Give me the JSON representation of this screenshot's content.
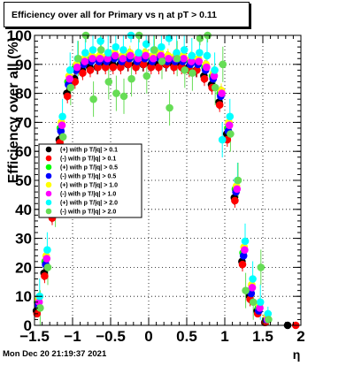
{
  "title": "Efficiency over all for Primary vs  η at pT > 0.11",
  "footer": "Mon Dec 20 21:19:37 2021",
  "chart_data": {
    "type": "scatter",
    "xlabel": "η",
    "ylabel": "Efficiency over all (%)",
    "xlim": [
      -1.5,
      2.0
    ],
    "ylim": [
      0,
      100
    ],
    "x_ticks": [
      "−1.5",
      "−1",
      "−0.5",
      "0",
      "0.5",
      "1",
      "1.5",
      "2"
    ],
    "y_ticks": [
      "0",
      "10",
      "20",
      "30",
      "40",
      "50",
      "60",
      "70",
      "80",
      "90",
      "100"
    ],
    "grid": true,
    "legend_position": "left-middle",
    "series": [
      {
        "name": "(+) with p T/|q| > 0.1",
        "color": "#000000",
        "x": [
          -1.45,
          -1.35,
          -1.25,
          -1.15,
          -1.05,
          -0.95,
          -0.85,
          -0.75,
          -0.65,
          -0.55,
          -0.45,
          -0.35,
          -0.25,
          -0.15,
          -0.05,
          0.05,
          0.15,
          0.25,
          0.35,
          0.45,
          0.55,
          0.65,
          0.75,
          0.85,
          0.95,
          1.05,
          1.15,
          1.25,
          1.35,
          1.45,
          1.55,
          1.85
        ],
        "y": [
          5,
          18,
          38,
          64,
          80,
          85,
          88,
          89,
          89,
          90,
          90,
          90,
          90,
          90,
          90,
          90,
          90,
          90,
          90,
          90,
          89,
          88,
          86,
          83,
          77,
          66,
          44,
          22,
          10,
          5,
          1,
          0
        ]
      },
      {
        "name": "(-) with p T/|q| > 0.1",
        "color": "#ff0000",
        "x": [
          -1.45,
          -1.35,
          -1.25,
          -1.15,
          -1.05,
          -0.95,
          -0.85,
          -0.75,
          -0.65,
          -0.55,
          -0.45,
          -0.35,
          -0.25,
          -0.15,
          -0.05,
          0.05,
          0.15,
          0.25,
          0.35,
          0.45,
          0.55,
          0.65,
          0.75,
          0.85,
          0.95,
          1.05,
          1.15,
          1.25,
          1.35,
          1.45,
          1.55,
          1.95
        ],
        "y": [
          4,
          17,
          37,
          63,
          79,
          84,
          87,
          88,
          89,
          89,
          89,
          89,
          90,
          89,
          90,
          89,
          89,
          90,
          89,
          89,
          88,
          88,
          85,
          82,
          76,
          64,
          43,
          21,
          9,
          4,
          1,
          0
        ]
      },
      {
        "name": "(+) with p T/|q| > 0.5",
        "color": "#00ff00",
        "x": [
          -1.45,
          -1.35,
          -1.25,
          -1.15,
          -1.05,
          -0.95,
          -0.85,
          -0.75,
          -0.65,
          -0.55,
          -0.45,
          -0.35,
          -0.25,
          -0.15,
          -0.05,
          0.05,
          0.15,
          0.25,
          0.35,
          0.45,
          0.55,
          0.65,
          0.75,
          0.85,
          0.95,
          1.05,
          1.15,
          1.25,
          1.35,
          1.45,
          1.55
        ],
        "y": [
          8,
          22,
          42,
          68,
          84,
          89,
          91,
          92,
          92,
          92,
          93,
          92,
          93,
          92,
          93,
          92,
          93,
          92,
          92,
          92,
          91,
          91,
          89,
          86,
          80,
          68,
          47,
          25,
          12,
          6,
          2
        ]
      },
      {
        "name": "(-) with p T/|q| > 0.5",
        "color": "#0000ff",
        "x": [
          -1.45,
          -1.35,
          -1.25,
          -1.15,
          -1.05,
          -0.95,
          -0.85,
          -0.75,
          -0.65,
          -0.55,
          -0.45,
          -0.35,
          -0.25,
          -0.15,
          -0.05,
          0.05,
          0.15,
          0.25,
          0.35,
          0.45,
          0.55,
          0.65,
          0.75,
          0.85,
          0.95,
          1.05,
          1.15,
          1.25,
          1.35,
          1.45,
          1.55
        ],
        "y": [
          7,
          21,
          41,
          67,
          83,
          88,
          90,
          91,
          91,
          91,
          92,
          91,
          92,
          91,
          92,
          91,
          92,
          91,
          91,
          91,
          90,
          90,
          88,
          85,
          79,
          67,
          46,
          24,
          11,
          5,
          2
        ]
      },
      {
        "name": "(+) with p T/|q| > 1.0",
        "color": "#ffff00",
        "x": [
          -1.45,
          -1.35,
          -1.25,
          -1.15,
          -1.05,
          -0.95,
          -0.85,
          -0.75,
          -0.65,
          -0.55,
          -0.45,
          -0.35,
          -0.25,
          -0.15,
          -0.05,
          0.05,
          0.15,
          0.25,
          0.35,
          0.45,
          0.55,
          0.65,
          0.75,
          0.85,
          0.95,
          1.05,
          1.15,
          1.25,
          1.35,
          1.45,
          1.55
        ],
        "y": [
          9,
          24,
          44,
          70,
          86,
          90,
          92,
          93,
          93,
          93,
          94,
          93,
          94,
          93,
          94,
          93,
          94,
          93,
          93,
          93,
          92,
          92,
          90,
          87,
          81,
          70,
          48,
          27,
          14,
          7,
          3
        ]
      },
      {
        "name": "(-) with p T/|q| > 1.0",
        "color": "#ff00ff",
        "x": [
          -1.45,
          -1.35,
          -1.25,
          -1.15,
          -1.05,
          -0.95,
          -0.85,
          -0.75,
          -0.65,
          -0.55,
          -0.45,
          -0.35,
          -0.25,
          -0.15,
          -0.05,
          0.05,
          0.15,
          0.25,
          0.35,
          0.45,
          0.55,
          0.65,
          0.75,
          0.85,
          0.95,
          1.05,
          1.15,
          1.25,
          1.35,
          1.45,
          1.55
        ],
        "y": [
          8,
          23,
          43,
          69,
          85,
          89,
          91,
          92,
          92,
          92,
          93,
          92,
          93,
          92,
          93,
          92,
          93,
          92,
          92,
          92,
          91,
          91,
          89,
          86,
          80,
          69,
          47,
          26,
          13,
          6,
          2
        ]
      },
      {
        "name": "(+) with p T/|q| > 2.0",
        "color": "#00ffff",
        "x": [
          -1.45,
          -1.35,
          -1.25,
          -1.15,
          -1.05,
          -0.95,
          -0.85,
          -0.75,
          -0.65,
          -0.55,
          -0.45,
          -0.35,
          -0.25,
          -0.15,
          -0.05,
          0.05,
          0.15,
          0.25,
          0.35,
          0.45,
          0.55,
          0.65,
          0.75,
          0.85,
          0.95,
          1.05,
          1.15,
          1.25,
          1.35,
          1.45,
          1.55
        ],
        "y": [
          10,
          26,
          46,
          72,
          88,
          92,
          94,
          95,
          98,
          94,
          96,
          95,
          100,
          94,
          97,
          95,
          96,
          99,
          94,
          95,
          93,
          94,
          93,
          88,
          64,
          72,
          50,
          29,
          16,
          8,
          4
        ]
      },
      {
        "name": "(-) with p T/|q| > 2.0",
        "color": "#66dd55",
        "x": [
          -1.45,
          -1.35,
          -1.25,
          -1.15,
          -1.05,
          -0.95,
          -0.85,
          -0.75,
          -0.65,
          -0.55,
          -0.45,
          -0.35,
          -0.25,
          -0.15,
          -0.05,
          0.05,
          0.15,
          0.25,
          0.35,
          0.45,
          0.55,
          0.65,
          0.75,
          0.85,
          0.95,
          1.05,
          1.15,
          1.25,
          1.35,
          1.45,
          1.55
        ],
        "y": [
          6,
          20,
          40,
          65,
          82,
          92,
          100,
          78,
          95,
          84,
          80,
          79,
          85,
          100,
          86,
          95,
          91,
          75,
          92,
          88,
          87,
          99,
          100,
          82,
          90,
          66,
          50,
          12,
          8,
          20,
          2
        ]
      }
    ]
  }
}
